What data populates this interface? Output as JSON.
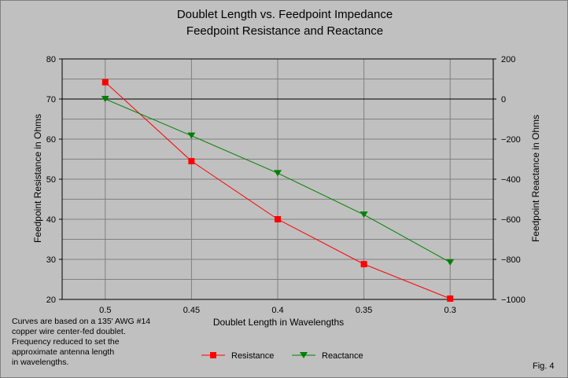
{
  "chart_data": {
    "type": "line",
    "title": "Doublet Length vs. Feedpoint Impedance",
    "subtitle": "Feedpoint Resistance and Reactance",
    "xlabel": "Doublet Length in Wavelengths",
    "ylabel_left": "Feedpoint Resistance in Ohms",
    "ylabel_right": "Feedpoint Reactance in Ohms",
    "x_tick_labels": [
      "0.5",
      "0.45",
      "0.4",
      "0.35",
      "0.3"
    ],
    "x_reversed": true,
    "ylim_left": [
      20,
      80
    ],
    "yticks_left": [
      20,
      30,
      40,
      50,
      60,
      70,
      80
    ],
    "ylim_right": [
      -1000,
      200
    ],
    "yticks_right": [
      -1000,
      -800,
      -600,
      -400,
      -200,
      0,
      200
    ],
    "grid": true,
    "legend_position": "bottom-center",
    "series": [
      {
        "name": "Resistance",
        "axis": "left",
        "color": "#ff0000",
        "marker": "square",
        "x": [
          0.5,
          0.45,
          0.4,
          0.35,
          0.3
        ],
        "y": [
          74.2,
          54.5,
          40,
          28.8,
          20.2
        ]
      },
      {
        "name": "Reactance",
        "axis": "right",
        "color": "#008000",
        "marker": "triangle-down",
        "x": [
          0.5,
          0.45,
          0.4,
          0.35,
          0.3
        ],
        "y": [
          0,
          -183,
          -370,
          -577,
          -815
        ]
      }
    ]
  },
  "note_lines": [
    "Curves are based on a 135' AWG #14",
    "copper wire center-fed doublet.",
    "Frequency reduced to set the",
    "approximate antenna length",
    "in wavelengths."
  ],
  "figure_label": "Fig. 4"
}
